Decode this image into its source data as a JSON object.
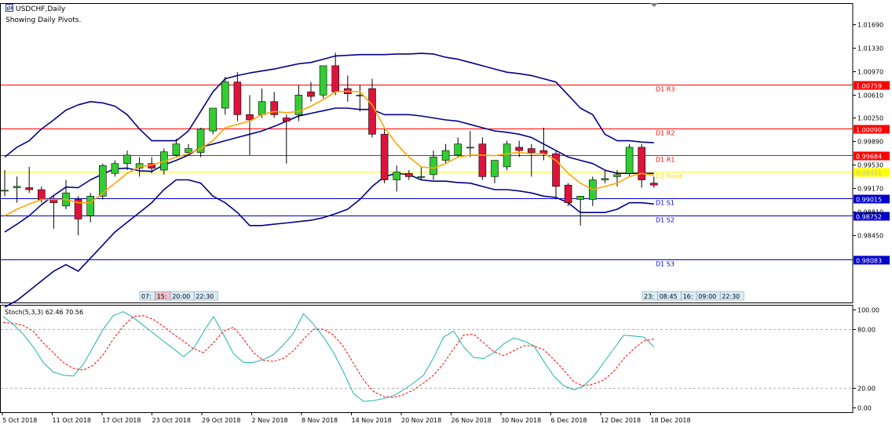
{
  "header": {
    "symbol_title": "USDCHF,Daily",
    "subtitle": "Showing Daily Pivots."
  },
  "colors": {
    "bull": "#32cd32",
    "bear": "#dc143c",
    "bands": "#00008b",
    "ma": "#ffa500",
    "resistance": "#ff0000",
    "pivot": "#ffff00",
    "support": "#0000cd",
    "stoch_main": "#20b2aa",
    "stoch_signal": "#ff0000"
  },
  "chart_data": [
    {
      "type": "candlestick",
      "title": "USDCHF,Daily",
      "ylim": [
        0.9742,
        1.0201
      ],
      "price_ticks": [
        "1.01690",
        "1.01330",
        "1.00970",
        "1.00610",
        "1.00250",
        "0.99890",
        "0.99530",
        "0.99170",
        "0.98810",
        "0.98450"
      ],
      "date_labels": [
        "5 Oct 2018",
        "11 Oct 2018",
        "17 Oct 2018",
        "23 Oct 2018",
        "29 Oct 2018",
        "2 Nov 2018",
        "8 Nov 2018",
        "14 Nov 2018",
        "20 Nov 2018",
        "26 Nov 2018",
        "30 Nov 2018",
        "6 Dec 2018",
        "12 Dec 2018",
        "18 Dec 2018"
      ],
      "candles": [
        {
          "o": 0.9914,
          "h": 0.9945,
          "l": 0.9905,
          "c": 0.9914
        },
        {
          "o": 0.9918,
          "h": 0.9935,
          "l": 0.9895,
          "c": 0.992
        },
        {
          "o": 0.9918,
          "h": 0.995,
          "l": 0.991,
          "c": 0.9915
        },
        {
          "o": 0.9915,
          "h": 0.992,
          "l": 0.9895,
          "c": 0.99
        },
        {
          "o": 0.99,
          "h": 0.9905,
          "l": 0.9855,
          "c": 0.9895
        },
        {
          "o": 0.989,
          "h": 0.993,
          "l": 0.9885,
          "c": 0.991
        },
        {
          "o": 0.99,
          "h": 0.9905,
          "l": 0.9845,
          "c": 0.987
        },
        {
          "o": 0.9875,
          "h": 0.991,
          "l": 0.9865,
          "c": 0.9905
        },
        {
          "o": 0.9905,
          "h": 0.9955,
          "l": 0.99,
          "c": 0.9952
        },
        {
          "o": 0.994,
          "h": 0.996,
          "l": 0.9935,
          "c": 0.9955
        },
        {
          "o": 0.9955,
          "h": 0.9975,
          "l": 0.9945,
          "c": 0.9968
        },
        {
          "o": 0.9948,
          "h": 0.9965,
          "l": 0.9935,
          "c": 0.9955
        },
        {
          "o": 0.9955,
          "h": 0.9965,
          "l": 0.994,
          "c": 0.9948
        },
        {
          "o": 0.9945,
          "h": 0.9978,
          "l": 0.9938,
          "c": 0.9973
        },
        {
          "o": 0.9968,
          "h": 0.9993,
          "l": 0.9965,
          "c": 0.9985
        },
        {
          "o": 0.9972,
          "h": 0.9985,
          "l": 0.997,
          "c": 0.9978
        },
        {
          "o": 0.9972,
          "h": 1.001,
          "l": 0.9965,
          "c": 1.0008
        },
        {
          "o": 1.0005,
          "h": 1.004,
          "l": 1.0,
          "c": 1.004
        },
        {
          "o": 1.004,
          "h": 1.0088,
          "l": 1.003,
          "c": 1.008
        },
        {
          "o": 1.008,
          "h": 1.0095,
          "l": 1.002,
          "c": 1.003
        },
        {
          "o": 1.003,
          "h": 1.006,
          "l": 0.9968,
          "c": 1.0022
        },
        {
          "o": 1.003,
          "h": 1.007,
          "l": 1.0025,
          "c": 1.005
        },
        {
          "o": 1.005,
          "h": 1.0065,
          "l": 1.0025,
          "c": 1.003
        },
        {
          "o": 1.0025,
          "h": 1.003,
          "l": 0.9955,
          "c": 1.002
        },
        {
          "o": 1.003,
          "h": 1.0075,
          "l": 1.002,
          "c": 1.006
        },
        {
          "o": 1.0065,
          "h": 1.008,
          "l": 1.005,
          "c": 1.0058
        },
        {
          "o": 1.006,
          "h": 1.0105,
          "l": 1.0055,
          "c": 1.0105
        },
        {
          "o": 1.0105,
          "h": 1.0125,
          "l": 1.006,
          "c": 1.0065
        },
        {
          "o": 1.007,
          "h": 1.009,
          "l": 1.005,
          "c": 1.0062
        },
        {
          "o": 1.006,
          "h": 1.0075,
          "l": 1.0035,
          "c": 1.006
        },
        {
          "o": 1.007,
          "h": 1.0085,
          "l": 0.9995,
          "c": 1.0
        },
        {
          "o": 1.0,
          "h": 1.0008,
          "l": 0.9925,
          "c": 0.993
        },
        {
          "o": 0.993,
          "h": 0.9952,
          "l": 0.9912,
          "c": 0.9942
        },
        {
          "o": 0.994,
          "h": 0.9945,
          "l": 0.993,
          "c": 0.9935
        },
        {
          "o": 0.9935,
          "h": 0.995,
          "l": 0.993,
          "c": 0.9935
        },
        {
          "o": 0.9938,
          "h": 0.9975,
          "l": 0.993,
          "c": 0.9965
        },
        {
          "o": 0.996,
          "h": 0.9985,
          "l": 0.9955,
          "c": 0.9975
        },
        {
          "o": 0.9968,
          "h": 0.9995,
          "l": 0.9965,
          "c": 0.9985
        },
        {
          "o": 0.998,
          "h": 1.0005,
          "l": 0.9965,
          "c": 0.998
        },
        {
          "o": 0.9985,
          "h": 0.9995,
          "l": 0.993,
          "c": 0.9935
        },
        {
          "o": 0.9935,
          "h": 0.996,
          "l": 0.9925,
          "c": 0.996
        },
        {
          "o": 0.995,
          "h": 0.999,
          "l": 0.9945,
          "c": 0.9985
        },
        {
          "o": 0.998,
          "h": 0.999,
          "l": 0.9965,
          "c": 0.9975
        },
        {
          "o": 0.9978,
          "h": 0.9985,
          "l": 0.9935,
          "c": 0.9972
        },
        {
          "o": 0.9975,
          "h": 1.001,
          "l": 0.996,
          "c": 0.997
        },
        {
          "o": 0.997,
          "h": 0.9975,
          "l": 0.99,
          "c": 0.992
        },
        {
          "o": 0.9922,
          "h": 0.9925,
          "l": 0.989,
          "c": 0.9895
        },
        {
          "o": 0.99,
          "h": 0.9905,
          "l": 0.986,
          "c": 0.9905
        },
        {
          "o": 0.99,
          "h": 0.9935,
          "l": 0.989,
          "c": 0.993
        },
        {
          "o": 0.993,
          "h": 0.9945,
          "l": 0.9925,
          "c": 0.9932
        },
        {
          "o": 0.9935,
          "h": 0.9945,
          "l": 0.992,
          "c": 0.9938
        },
        {
          "o": 0.994,
          "h": 0.9985,
          "l": 0.9935,
          "c": 0.998
        },
        {
          "o": 0.998,
          "h": 0.9985,
          "l": 0.9918,
          "c": 0.993
        },
        {
          "o": 0.9925,
          "h": 0.9935,
          "l": 0.9918,
          "c": 0.9922
        }
      ],
      "ma_values": [
        0.9875,
        0.9885,
        0.9893,
        0.99,
        0.99,
        0.99,
        0.9895,
        0.9895,
        0.991,
        0.9925,
        0.994,
        0.995,
        0.9953,
        0.9958,
        0.9965,
        0.997,
        0.9978,
        0.999,
        1.001,
        1.0015,
        1.002,
        1.003,
        1.0035,
        1.0033,
        1.0035,
        1.0043,
        1.0053,
        1.0065,
        1.0066,
        1.0065,
        1.0045,
        1.001,
        0.9985,
        0.9965,
        0.995,
        0.9948,
        0.9955,
        0.9965,
        0.9968,
        0.9968,
        0.9967,
        0.997,
        0.9972,
        0.997,
        0.997,
        0.996,
        0.994,
        0.9925,
        0.9915,
        0.992,
        0.9925,
        0.9935,
        0.994,
        0.9937
      ],
      "upper_band": [
        0.9965,
        0.998,
        0.999,
        1.0008,
        1.0022,
        1.0037,
        1.0045,
        1.005,
        1.0048,
        1.0043,
        1.003,
        1.0008,
        0.999,
        0.999,
        0.999,
        1.0005,
        1.0035,
        1.0065,
        1.0085,
        1.009,
        1.0094,
        1.0097,
        1.01,
        1.0104,
        1.0108,
        1.011,
        1.0115,
        1.012,
        1.0121,
        1.0122,
        1.0122,
        1.0122,
        1.0123,
        1.0123,
        1.0124,
        1.0123,
        1.0118,
        1.0115,
        1.011,
        1.0105,
        1.01,
        1.0095,
        1.0093,
        1.009,
        1.0085,
        1.008,
        1.006,
        1.004,
        1.003,
        1.0,
        0.999,
        0.999,
        0.9988,
        0.9987
      ],
      "lower_band": [
        0.9735,
        0.9745,
        0.976,
        0.9775,
        0.979,
        0.98,
        0.979,
        0.981,
        0.983,
        0.985,
        0.9865,
        0.988,
        0.9895,
        0.9915,
        0.993,
        0.993,
        0.9925,
        0.9905,
        0.9895,
        0.988,
        0.986,
        0.986,
        0.9862,
        0.9864,
        0.9866,
        0.9868,
        0.9872,
        0.9878,
        0.9885,
        0.99,
        0.992,
        0.9935,
        0.994,
        0.9938,
        0.993,
        0.9928,
        0.9928,
        0.9926,
        0.9925,
        0.992,
        0.9915,
        0.9915,
        0.9913,
        0.991,
        0.9905,
        0.9903,
        0.9895,
        0.988,
        0.988,
        0.988,
        0.9885,
        0.9895,
        0.9895,
        0.9893
      ],
      "mid_band": [
        0.985,
        0.9862,
        0.9875,
        0.9892,
        0.9906,
        0.9919,
        0.9918,
        0.993,
        0.9939,
        0.9947,
        0.9948,
        0.9944,
        0.9943,
        0.9953,
        0.996,
        0.9968,
        0.998,
        0.9985,
        0.999,
        0.9995,
        1.0,
        1.0005,
        1.0012,
        1.002,
        1.0028,
        1.0032,
        1.0036,
        1.004,
        1.004,
        1.0038,
        1.0038,
        1.003,
        1.003,
        1.003,
        1.0028,
        1.0025,
        1.0022,
        1.002,
        1.0015,
        1.001,
        1.0005,
        1.0003,
        1.0,
        0.9995,
        0.9985,
        0.9975,
        0.9965,
        0.996,
        0.9955,
        0.9945,
        0.994,
        0.994,
        0.994,
        0.994
      ],
      "pivot_levels": [
        {
          "name": "D1 R3",
          "value": 1.00759,
          "value_label": "1.00759",
          "kind": "resistance"
        },
        {
          "name": "D1 R2",
          "value": 1.0009,
          "value_label": "1.00090",
          "kind": "resistance"
        },
        {
          "name": "D1 R1",
          "value": 0.99684,
          "value_label": "0.99684",
          "kind": "resistance"
        },
        {
          "name": "D1 Pivot",
          "value": 0.99421,
          "value_label": "0.99421",
          "kind": "pivot"
        },
        {
          "name": "D1 S1",
          "value": 0.99015,
          "value_label": "0.99015",
          "kind": "support"
        },
        {
          "name": "D1 S2",
          "value": 0.98752,
          "value_label": "0.98752",
          "kind": "support"
        },
        {
          "name": "D1 S3",
          "value": 0.98083,
          "value_label": "0.98083",
          "kind": "support"
        }
      ],
      "time_labels_left": [
        "07:",
        "15:",
        "20:00",
        "22:30"
      ],
      "time_labels_right": [
        "23:",
        "08:45",
        "16:",
        "09:00",
        "22:30"
      ]
    },
    {
      "type": "line",
      "title": "Stoch(5,3,3) 62.46 70.56",
      "ylim": [
        -5,
        105
      ],
      "y_ticks": [
        "100.00",
        "80.00",
        "20.00",
        "0.00"
      ],
      "levels": [
        80,
        20
      ],
      "series": [
        {
          "values": [
            93,
            85,
            75,
            62,
            46,
            36,
            33,
            32,
            44,
            62,
            80,
            94,
            98,
            92,
            84,
            76,
            68,
            60,
            52,
            60,
            77,
            93,
            75,
            55,
            46,
            46,
            49,
            54,
            64,
            76,
            96,
            85,
            72,
            56,
            36,
            14,
            6,
            7,
            9,
            12,
            18,
            25,
            33,
            51,
            72,
            78,
            62,
            51,
            50,
            56,
            65,
            71,
            68,
            63,
            47,
            32,
            22,
            18,
            22,
            32,
            46,
            60,
            74,
            73,
            72,
            62
          ]
        },
        {
          "values": [
            87,
            86,
            84,
            78,
            66,
            56,
            46,
            40,
            38,
            43,
            54,
            70,
            83,
            93,
            94,
            90,
            83,
            75,
            68,
            60,
            56,
            66,
            78,
            82,
            70,
            56,
            48,
            47,
            50,
            58,
            70,
            80,
            80,
            74,
            62,
            45,
            28,
            16,
            11,
            10,
            13,
            18,
            25,
            33,
            45,
            60,
            74,
            75,
            66,
            57,
            53,
            58,
            63,
            63,
            59,
            49,
            38,
            26,
            22,
            24,
            28,
            37,
            50,
            60,
            68,
            70
          ]
        }
      ]
    }
  ]
}
